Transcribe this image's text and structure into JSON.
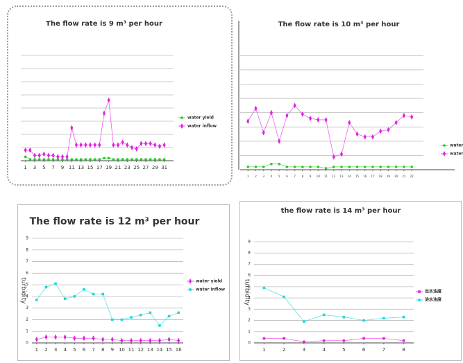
{
  "chart_data": [
    {
      "type": "line",
      "title": "The flow rate is 9 m³ per hour",
      "x": [
        1,
        2,
        3,
        4,
        5,
        6,
        7,
        8,
        9,
        10,
        11,
        12,
        13,
        14,
        15,
        16,
        17,
        18,
        19,
        20,
        21,
        22,
        23,
        24,
        25,
        26,
        27,
        28,
        29,
        30,
        31
      ],
      "xlim": [
        0,
        33
      ],
      "xticks": [
        1,
        3,
        5,
        7,
        9,
        11,
        13,
        15,
        17,
        19,
        21,
        23,
        25,
        27,
        29,
        31
      ],
      "ylim": [
        0,
        8
      ],
      "yticks": [
        1,
        2,
        3,
        4,
        5,
        6,
        7,
        8
      ],
      "ytick_labels": false,
      "grid": true,
      "legend": "right",
      "series": [
        {
          "name": "water yield",
          "color": "#22cc22",
          "marker": "circle",
          "values": [
            0.3,
            0.1,
            0.1,
            0.1,
            0.1,
            0.1,
            0.1,
            0.1,
            0.1,
            0.1,
            0.1,
            0.1,
            0.1,
            0.1,
            0.1,
            0.1,
            0.1,
            0.2,
            0.2,
            0.1,
            0.1,
            0.1,
            0.1,
            0.1,
            0.1,
            0.1,
            0.1,
            0.1,
            0.1,
            0.1,
            0.1
          ]
        },
        {
          "name": "water inflow",
          "color": "#e020e0",
          "marker": "diamond",
          "values": [
            0.8,
            0.8,
            0.4,
            0.4,
            0.5,
            0.4,
            0.4,
            0.3,
            0.3,
            0.3,
            2.5,
            1.2,
            1.2,
            1.2,
            1.2,
            1.2,
            1.2,
            3.6,
            4.6,
            1.2,
            1.2,
            1.4,
            1.2,
            1.0,
            0.9,
            1.3,
            1.3,
            1.3,
            1.2,
            1.1,
            1.2
          ]
        }
      ]
    },
    {
      "type": "line",
      "title": "The flow rate is 10 m³ per hour",
      "x": [
        1,
        2,
        3,
        4,
        5,
        6,
        7,
        8,
        9,
        10,
        11,
        12,
        13,
        14,
        15,
        16,
        17,
        18,
        19,
        20,
        21,
        22
      ],
      "xlim": [
        0,
        23.5
      ],
      "xticks": [
        1,
        2,
        3,
        4,
        5,
        6,
        7,
        8,
        9,
        10,
        11,
        12,
        13,
        14,
        15,
        16,
        17,
        18,
        19,
        20,
        21,
        22
      ],
      "ylim": [
        0,
        8.5
      ],
      "yticks": [
        1,
        2,
        3,
        4,
        5,
        6,
        7,
        8
      ],
      "ytick_labels": false,
      "grid": true,
      "legend": "right",
      "series": [
        {
          "name": "water yield",
          "color": "#22cc22",
          "marker": "circle",
          "values": [
            0.2,
            0.2,
            0.2,
            0.4,
            0.4,
            0.2,
            0.2,
            0.2,
            0.2,
            0.2,
            0.1,
            0.2,
            0.2,
            0.2,
            0.2,
            0.2,
            0.2,
            0.2,
            0.2,
            0.2,
            0.2,
            0.2
          ]
        },
        {
          "name": "water inflow",
          "color": "#e020e0",
          "marker": "diamond",
          "values": [
            3.4,
            4.3,
            2.6,
            4.0,
            2.0,
            3.8,
            4.5,
            3.9,
            3.6,
            3.5,
            3.5,
            0.9,
            1.1,
            3.3,
            2.5,
            2.3,
            2.3,
            2.7,
            2.8,
            3.3,
            3.8,
            3.7
          ]
        }
      ]
    },
    {
      "type": "line",
      "title": "The flow rate is 12 m³ per hour",
      "y_label": "turbidity",
      "x": [
        1,
        2,
        3,
        4,
        5,
        6,
        7,
        8,
        9,
        10,
        11,
        12,
        13,
        14,
        15,
        16
      ],
      "xlim": [
        0.5,
        16.5
      ],
      "xticks": [
        1,
        2,
        3,
        4,
        5,
        6,
        7,
        8,
        9,
        10,
        11,
        12,
        13,
        14,
        15,
        16
      ],
      "ylim": [
        0,
        9
      ],
      "yticks": [
        0,
        1,
        2,
        3,
        4,
        5,
        6,
        7,
        8,
        9
      ],
      "ytick_labels": true,
      "grid": true,
      "legend": "right",
      "series": [
        {
          "name": "water yield",
          "color": "#e020e0",
          "marker": "diamond",
          "values": [
            0.3,
            0.5,
            0.5,
            0.5,
            0.4,
            0.4,
            0.4,
            0.3,
            0.3,
            0.2,
            0.2,
            0.2,
            0.2,
            0.2,
            0.3,
            0.2
          ]
        },
        {
          "name": "water inflow",
          "color": "#20d8d8",
          "marker": "square",
          "values": [
            3.7,
            4.8,
            5.1,
            3.8,
            4.0,
            4.6,
            4.2,
            4.2,
            2.0,
            2.0,
            2.2,
            2.4,
            2.6,
            1.5,
            2.3,
            2.6
          ]
        }
      ]
    },
    {
      "type": "line",
      "title": "the flow rate is 14 m³ per hour",
      "y_label": "turbidity",
      "x": [
        1,
        2,
        3,
        4,
        5,
        6,
        7,
        8
      ],
      "xlim": [
        0.5,
        8.5
      ],
      "xticks": [
        1,
        2,
        3,
        4,
        5,
        6,
        7,
        8
      ],
      "ylim": [
        0,
        9
      ],
      "yticks": [
        0,
        1,
        2,
        3,
        4,
        5,
        6,
        7,
        8,
        9
      ],
      "ytick_labels": true,
      "grid": true,
      "legend": "right",
      "series": [
        {
          "name": "出水浊度",
          "color": "#e020e0",
          "marker": "square",
          "values": [
            0.4,
            0.4,
            0.1,
            0.2,
            0.2,
            0.4,
            0.4,
            0.2
          ]
        },
        {
          "name": "进水浊度",
          "color": "#20d8d8",
          "marker": "square",
          "values": [
            4.9,
            4.1,
            1.9,
            2.5,
            2.3,
            2.0,
            2.2,
            2.3
          ]
        }
      ]
    }
  ]
}
